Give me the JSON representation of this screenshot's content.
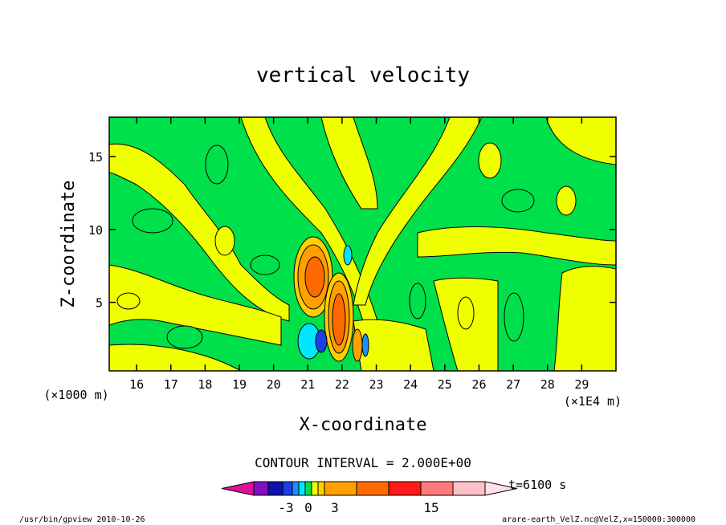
{
  "chart_data": {
    "type": "heatmap",
    "title": "vertical velocity",
    "xlabel": "X-coordinate",
    "ylabel": "Z-coordinate",
    "x_units": "(×1E4 m)",
    "y_units": "(×1000 m)",
    "xlim": [
      15.2,
      30.0
    ],
    "ylim": [
      0.3,
      17.7
    ],
    "x_ticks": [
      "16",
      "17",
      "18",
      "19",
      "20",
      "21",
      "22",
      "23",
      "24",
      "25",
      "26",
      "27",
      "28",
      "29"
    ],
    "y_ticks": [
      "5",
      "10",
      "15"
    ],
    "contour_interval": "CONTOUR INTERVAL = 2.000E+00",
    "time": "t=6100 s",
    "colorbar": {
      "tick_labels": [
        "-3",
        "0",
        "3",
        "15"
      ],
      "colors": [
        "#e0109a",
        "#7f0fbf",
        "#1010b0",
        "#1a3fe6",
        "#1f8fff",
        "#00e6ff",
        "#00e04a",
        "#f0ff00",
        "#ffd000",
        "#ffa000",
        "#ff6a00",
        "#ff1a1a",
        "#ff7a7a",
        "#ffc0c8",
        "#ffe0e6"
      ]
    },
    "features": [
      {
        "kind": "updraft",
        "x": 21.0,
        "z": 7.0,
        "level": "positive"
      },
      {
        "kind": "updraft",
        "x": 21.8,
        "z": 4.0,
        "level": "positive"
      },
      {
        "kind": "downdraft",
        "x": 21.0,
        "z": 2.3,
        "level": "negative"
      }
    ]
  },
  "footer": {
    "left": "/usr/bin/gpview   2010-10-26",
    "right": "arare-earth_VelZ.nc@VelZ,x=150000:300000"
  }
}
